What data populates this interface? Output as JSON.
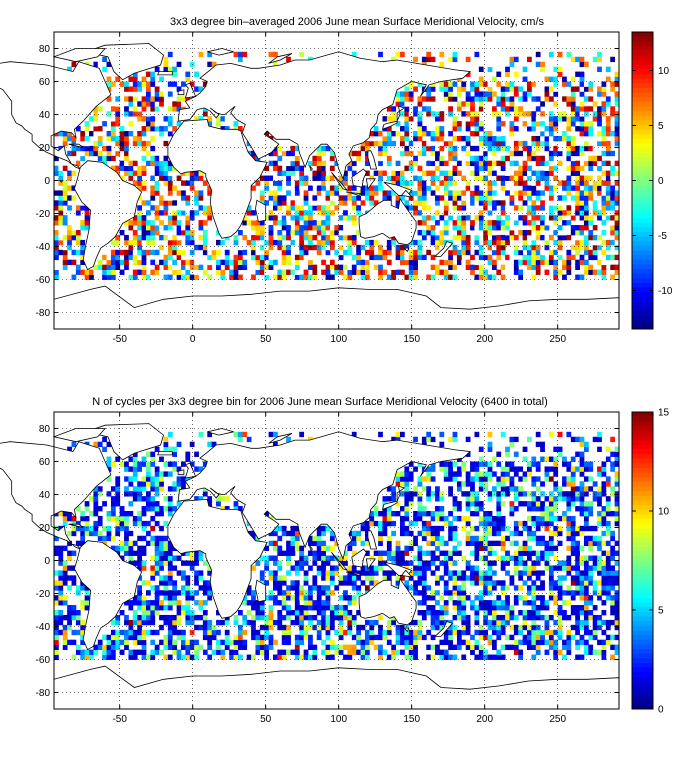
{
  "chart_data": [
    {
      "type": "heatmap",
      "title": "3x3 degree bin–averaged 2006 June mean Surface Meridional Velocity, cm/s",
      "xlabel": "",
      "ylabel": "",
      "xlim": [
        -95,
        292
      ],
      "ylim": [
        -90,
        90
      ],
      "x_ticks": [
        -50,
        0,
        50,
        100,
        150,
        200,
        250
      ],
      "y_ticks": [
        -80,
        -60,
        -40,
        -20,
        0,
        20,
        40,
        60,
        80
      ],
      "grid": true,
      "colorbar": {
        "range": [
          -13.5,
          13.5
        ],
        "ticks": [
          -10,
          -5,
          0,
          5,
          10
        ],
        "colormap": "jet"
      },
      "bin_size_deg": 3,
      "value_range": [
        -13.5,
        13.5
      ],
      "seed": 7
    },
    {
      "type": "heatmap",
      "title": "N of cycles per 3x3 degree bin for 2006 June mean Surface Meridional Velocity (6400 in total)",
      "xlabel": "",
      "ylabel": "",
      "xlim": [
        -95,
        292
      ],
      "ylim": [
        -90,
        90
      ],
      "x_ticks": [
        -50,
        0,
        50,
        100,
        150,
        200,
        250
      ],
      "y_ticks": [
        -80,
        -60,
        -40,
        -20,
        0,
        20,
        40,
        60,
        80
      ],
      "grid": true,
      "colorbar": {
        "range": [
          0,
          15
        ],
        "ticks": [
          0,
          5,
          10,
          15
        ],
        "colormap": "jet"
      },
      "bin_size_deg": 3,
      "value_range": [
        0,
        15
      ],
      "seed": 7
    }
  ],
  "colors": {
    "land_fill": "#ffffff",
    "coastline": "#000000",
    "axes": "#000000"
  }
}
